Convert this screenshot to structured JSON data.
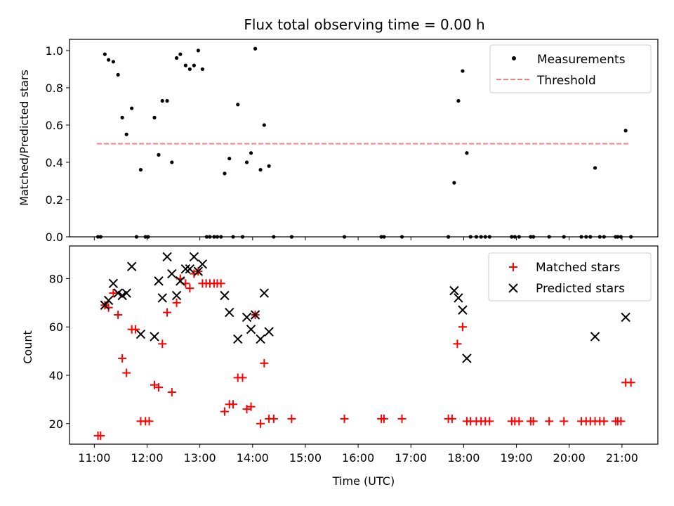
{
  "chart_data": [
    {
      "type": "scatter",
      "title": "Flux total observing time = 0.00 h",
      "xlabel": "",
      "ylabel": "Matched/Predicted stars",
      "xlim_hours": [
        10.53,
        21.68
      ],
      "ylim": [
        0,
        1.06
      ],
      "x_ticks": [
        11,
        12,
        13,
        14,
        15,
        16,
        17,
        18,
        19,
        20,
        21
      ],
      "y_ticks": [
        0.0,
        0.2,
        0.4,
        0.6,
        0.8,
        1.0
      ],
      "y_tick_labels": [
        "0.0",
        "0.2",
        "0.4",
        "0.6",
        "0.8",
        "1.0"
      ],
      "legend_position": "top-right",
      "legend": [
        {
          "label": "Measurements",
          "marker": "dot",
          "color": "#000000"
        },
        {
          "label": "Threshold",
          "marker": "dashed-line",
          "color": "#f08080"
        }
      ],
      "threshold": {
        "value": 0.5,
        "x_start": 11.05,
        "x_end": 21.12,
        "color": "#f08080"
      },
      "series": [
        {
          "name": "Measurements",
          "color": "#000000",
          "points": [
            [
              11.07,
              0.0
            ],
            [
              11.12,
              0.0
            ],
            [
              11.2,
              0.98
            ],
            [
              11.27,
              0.95
            ],
            [
              11.36,
              0.94
            ],
            [
              11.45,
              0.87
            ],
            [
              11.53,
              0.64
            ],
            [
              11.61,
              0.55
            ],
            [
              11.71,
              0.69
            ],
            [
              11.8,
              0.0
            ],
            [
              11.88,
              0.36
            ],
            [
              11.97,
              0.0
            ],
            [
              12.02,
              0.0
            ],
            [
              12.14,
              0.64
            ],
            [
              12.22,
              0.44
            ],
            [
              12.29,
              0.73
            ],
            [
              12.38,
              0.73
            ],
            [
              12.47,
              0.4
            ],
            [
              12.56,
              0.96
            ],
            [
              12.63,
              0.98
            ],
            [
              12.73,
              0.92
            ],
            [
              12.81,
              0.9
            ],
            [
              12.89,
              0.92
            ],
            [
              12.97,
              1.0
            ],
            [
              13.05,
              0.9
            ],
            [
              13.13,
              0.0
            ],
            [
              13.19,
              0.0
            ],
            [
              13.27,
              0.0
            ],
            [
              13.33,
              0.0
            ],
            [
              13.4,
              0.0
            ],
            [
              13.47,
              0.34
            ],
            [
              13.56,
              0.42
            ],
            [
              13.63,
              0.0
            ],
            [
              13.72,
              0.71
            ],
            [
              13.81,
              0.0
            ],
            [
              13.89,
              0.4
            ],
            [
              13.97,
              0.45
            ],
            [
              14.05,
              1.01
            ],
            [
              14.15,
              0.36
            ],
            [
              14.22,
              0.6
            ],
            [
              14.31,
              0.38
            ],
            [
              14.4,
              0.0
            ],
            [
              14.74,
              0.0
            ],
            [
              15.74,
              0.0
            ],
            [
              16.44,
              0.0
            ],
            [
              16.49,
              0.0
            ],
            [
              16.83,
              0.0
            ],
            [
              17.71,
              0.0
            ],
            [
              17.82,
              0.29
            ],
            [
              17.9,
              0.73
            ],
            [
              17.98,
              0.89
            ],
            [
              18.06,
              0.45
            ],
            [
              18.13,
              0.0
            ],
            [
              18.24,
              0.0
            ],
            [
              18.33,
              0.0
            ],
            [
              18.41,
              0.0
            ],
            [
              18.49,
              0.0
            ],
            [
              18.91,
              0.0
            ],
            [
              18.97,
              0.0
            ],
            [
              19.05,
              0.0
            ],
            [
              19.27,
              0.0
            ],
            [
              19.32,
              0.0
            ],
            [
              19.62,
              0.0
            ],
            [
              19.9,
              0.0
            ],
            [
              20.23,
              0.0
            ],
            [
              20.32,
              0.0
            ],
            [
              20.4,
              0.0
            ],
            [
              20.49,
              0.37
            ],
            [
              20.58,
              0.0
            ],
            [
              20.66,
              0.0
            ],
            [
              20.88,
              0.0
            ],
            [
              20.92,
              0.0
            ],
            [
              20.98,
              0.0
            ],
            [
              21.07,
              0.57
            ],
            [
              21.17,
              0.0
            ]
          ]
        }
      ]
    },
    {
      "type": "scatter",
      "title": "",
      "xlabel": "Time (UTC)",
      "ylabel": "Count",
      "xlim_hours": [
        10.53,
        21.68
      ],
      "ylim": [
        11.5,
        93.5
      ],
      "x_ticks": [
        11,
        12,
        13,
        14,
        15,
        16,
        17,
        18,
        19,
        20,
        21
      ],
      "x_tick_labels": [
        "11:00",
        "12:00",
        "13:00",
        "14:00",
        "15:00",
        "16:00",
        "17:00",
        "18:00",
        "19:00",
        "20:00",
        "21:00"
      ],
      "y_ticks": [
        20,
        40,
        60,
        80
      ],
      "y_tick_labels": [
        "20",
        "40",
        "60",
        "80"
      ],
      "legend_position": "top-right",
      "legend": [
        {
          "label": "Matched stars",
          "marker": "plus",
          "color": "#ff0000"
        },
        {
          "label": "Predicted stars",
          "marker": "x",
          "color": "#000000"
        }
      ],
      "series": [
        {
          "name": "Matched stars",
          "marker": "plus",
          "color": "#ff0000",
          "points": [
            [
              11.07,
              15
            ],
            [
              11.12,
              15
            ],
            [
              11.2,
              69
            ],
            [
              11.27,
              68
            ],
            [
              11.36,
              74
            ],
            [
              11.45,
              65
            ],
            [
              11.53,
              47
            ],
            [
              11.61,
              41
            ],
            [
              11.71,
              59
            ],
            [
              11.78,
              59
            ],
            [
              11.88,
              21
            ],
            [
              11.97,
              21
            ],
            [
              12.04,
              21
            ],
            [
              12.14,
              36
            ],
            [
              12.22,
              35
            ],
            [
              12.29,
              53
            ],
            [
              12.38,
              66
            ],
            [
              12.47,
              33
            ],
            [
              12.56,
              70
            ],
            [
              12.63,
              80
            ],
            [
              12.73,
              78
            ],
            [
              12.81,
              76
            ],
            [
              12.89,
              82
            ],
            [
              12.97,
              83
            ],
            [
              13.05,
              78
            ],
            [
              13.12,
              78
            ],
            [
              13.19,
              78
            ],
            [
              13.27,
              78
            ],
            [
              13.33,
              78
            ],
            [
              13.4,
              78
            ],
            [
              13.47,
              25
            ],
            [
              13.56,
              28
            ],
            [
              13.63,
              28
            ],
            [
              13.72,
              39
            ],
            [
              13.81,
              39
            ],
            [
              13.89,
              26
            ],
            [
              13.97,
              27
            ],
            [
              14.05,
              65
            ],
            [
              14.15,
              20
            ],
            [
              14.22,
              45
            ],
            [
              14.31,
              22
            ],
            [
              14.4,
              22
            ],
            [
              14.74,
              22
            ],
            [
              15.74,
              22
            ],
            [
              16.44,
              22
            ],
            [
              16.49,
              22
            ],
            [
              16.83,
              22
            ],
            [
              17.71,
              22
            ],
            [
              17.78,
              22
            ],
            [
              17.88,
              53
            ],
            [
              17.98,
              60
            ],
            [
              18.06,
              21
            ],
            [
              18.13,
              21
            ],
            [
              18.24,
              21
            ],
            [
              18.33,
              21
            ],
            [
              18.41,
              21
            ],
            [
              18.49,
              21
            ],
            [
              18.91,
              21
            ],
            [
              18.97,
              21
            ],
            [
              19.05,
              21
            ],
            [
              19.27,
              21
            ],
            [
              19.32,
              21
            ],
            [
              19.62,
              21
            ],
            [
              19.9,
              21
            ],
            [
              20.23,
              21
            ],
            [
              20.32,
              21
            ],
            [
              20.4,
              21
            ],
            [
              20.49,
              21
            ],
            [
              20.58,
              21
            ],
            [
              20.66,
              21
            ],
            [
              20.88,
              21
            ],
            [
              20.92,
              21
            ],
            [
              20.98,
              21
            ],
            [
              21.07,
              37
            ],
            [
              21.17,
              37
            ]
          ]
        },
        {
          "name": "Predicted stars",
          "marker": "x",
          "color": "#000000",
          "points": [
            [
              11.2,
              69
            ],
            [
              11.27,
              71
            ],
            [
              11.36,
              78
            ],
            [
              11.45,
              74
            ],
            [
              11.53,
              73
            ],
            [
              11.61,
              74
            ],
            [
              11.71,
              85
            ],
            [
              11.88,
              57
            ],
            [
              12.14,
              56
            ],
            [
              12.22,
              79
            ],
            [
              12.29,
              72
            ],
            [
              12.38,
              89
            ],
            [
              12.47,
              82
            ],
            [
              12.56,
              73
            ],
            [
              12.63,
              79
            ],
            [
              12.73,
              84
            ],
            [
              12.81,
              84
            ],
            [
              12.89,
              89
            ],
            [
              12.97,
              83
            ],
            [
              13.05,
              86
            ],
            [
              13.47,
              73
            ],
            [
              13.56,
              66
            ],
            [
              13.72,
              55
            ],
            [
              13.89,
              64
            ],
            [
              13.97,
              59
            ],
            [
              14.05,
              65
            ],
            [
              14.15,
              55
            ],
            [
              14.22,
              74
            ],
            [
              14.31,
              58
            ],
            [
              17.82,
              75
            ],
            [
              17.9,
              72
            ],
            [
              17.98,
              67
            ],
            [
              18.06,
              47
            ],
            [
              20.49,
              56
            ],
            [
              21.07,
              64
            ]
          ]
        }
      ]
    }
  ]
}
